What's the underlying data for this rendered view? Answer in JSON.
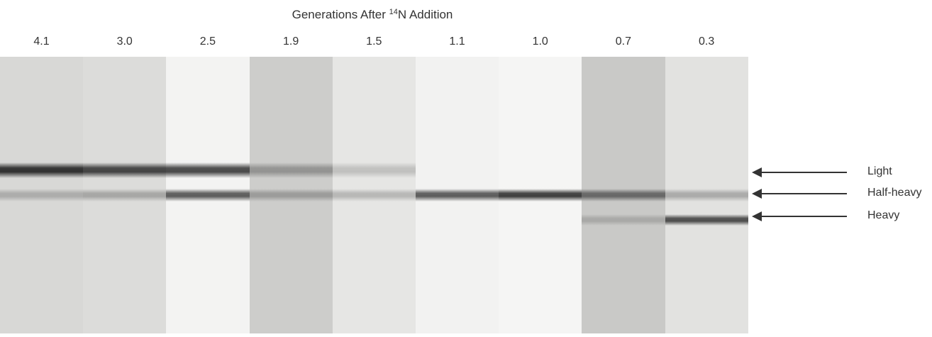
{
  "header": {
    "title_prefix": "Generations After ",
    "title_isotope_mass": "14",
    "title_suffix": "N Addition"
  },
  "lanes": [
    {
      "label": "4.1",
      "background": "#d8d8d6",
      "bands": [
        {
          "pos": "light",
          "strength": 0.95
        },
        {
          "pos": "half-heavy",
          "strength": 0.25
        }
      ]
    },
    {
      "label": "3.0",
      "background": "#dcdcda",
      "bands": [
        {
          "pos": "light",
          "strength": 0.85
        },
        {
          "pos": "half-heavy",
          "strength": 0.3
        }
      ]
    },
    {
      "label": "2.5",
      "background": "#f3f3f2",
      "bands": [
        {
          "pos": "light",
          "strength": 0.85
        },
        {
          "pos": "half-heavy",
          "strength": 0.75
        }
      ]
    },
    {
      "label": "1.9",
      "background": "#cdcdcb",
      "bands": [
        {
          "pos": "light",
          "strength": 0.35
        },
        {
          "pos": "half-heavy",
          "strength": 0.3
        }
      ]
    },
    {
      "label": "1.5",
      "background": "#e6e6e4",
      "bands": [
        {
          "pos": "light",
          "strength": 0.2
        },
        {
          "pos": "half-heavy",
          "strength": 0.25
        }
      ]
    },
    {
      "label": "1.1",
      "background": "#f2f2f1",
      "bands": [
        {
          "pos": "half-heavy",
          "strength": 0.75
        }
      ]
    },
    {
      "label": "1.0",
      "background": "#f5f5f4",
      "bands": [
        {
          "pos": "half-heavy",
          "strength": 0.9
        }
      ]
    },
    {
      "label": "0.7",
      "background": "#c9c9c7",
      "bands": [
        {
          "pos": "half-heavy",
          "strength": 0.6
        },
        {
          "pos": "heavy",
          "strength": 0.2
        }
      ]
    },
    {
      "label": "0.3",
      "background": "#e2e2e0",
      "bands": [
        {
          "pos": "half-heavy",
          "strength": 0.3
        },
        {
          "pos": "heavy",
          "strength": 0.8
        }
      ]
    }
  ],
  "band_labels": [
    {
      "key": "light",
      "text": "Light"
    },
    {
      "key": "half-heavy",
      "text": "Half-heavy"
    },
    {
      "key": "heavy",
      "text": "Heavy"
    }
  ]
}
